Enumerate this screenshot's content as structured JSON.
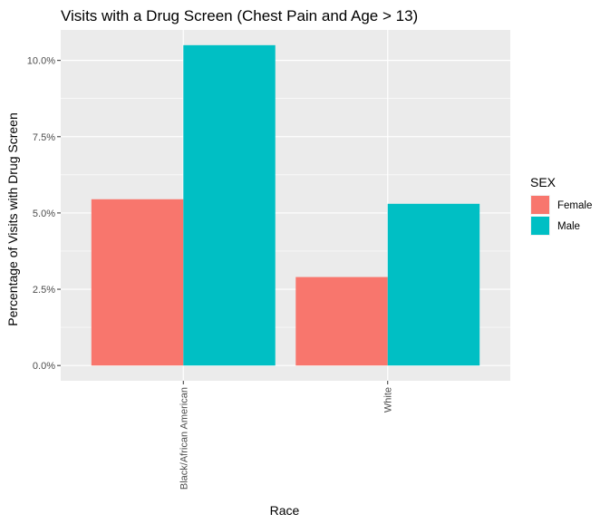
{
  "chart_data": {
    "type": "bar",
    "title": "Visits with a Drug Screen (Chest Pain and Age > 13)",
    "xlabel": "Race",
    "ylabel": "Percentage of Visits with Drug Screen",
    "categories": [
      "Black/African American",
      "White"
    ],
    "series": [
      {
        "name": "Female",
        "color": "#F8766D",
        "values": [
          5.45,
          2.9
        ]
      },
      {
        "name": "Male",
        "color": "#00BFC4",
        "values": [
          10.5,
          5.3
        ]
      }
    ],
    "ylim": [
      -0.5,
      11.0
    ],
    "yticks": [
      0,
      2.5,
      5.0,
      7.5,
      10.0
    ],
    "ytick_labels": [
      "0.0%",
      "2.5%",
      "5.0%",
      "7.5%",
      "10.0%"
    ],
    "grid": true,
    "legend": {
      "title": "SEX",
      "position": "right"
    },
    "panel_background": "#EBEBEB"
  }
}
